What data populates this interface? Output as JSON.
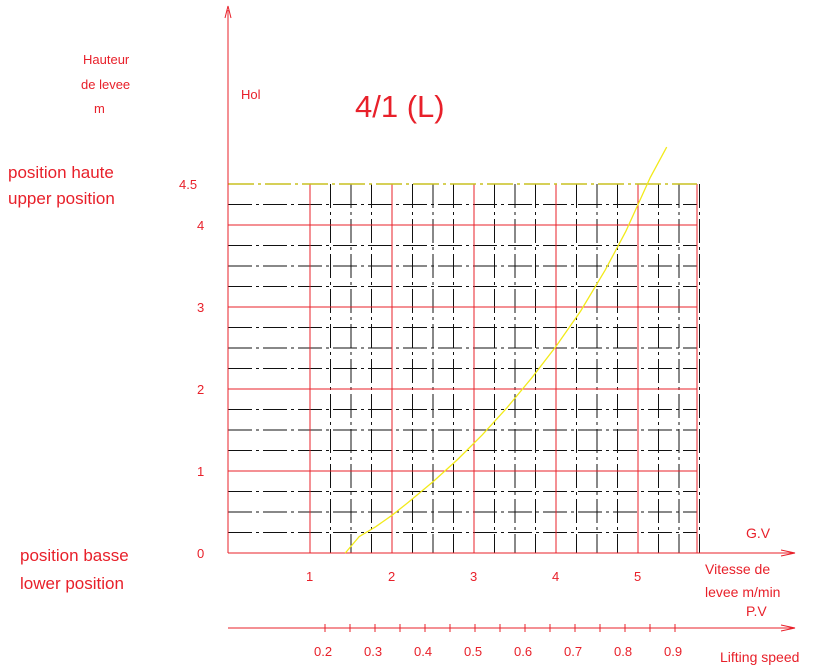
{
  "chart_data": {
    "type": "line",
    "title": "4/1 (L)",
    "hoist_label": "Hol",
    "y_axis_title": [
      "Hauteur",
      "de levee",
      "m"
    ],
    "y_ticks": [
      "0",
      "1",
      "2",
      "3",
      "4",
      "4.5"
    ],
    "ylim": [
      0,
      4.5
    ],
    "x_gv_label": "G.V",
    "x_gv_title": [
      "Vitesse de",
      "levee m/min"
    ],
    "x_gv_ticks": [
      "1",
      "2",
      "3",
      "4",
      "5"
    ],
    "xlim_gv": [
      0,
      5.8
    ],
    "x_pv_label": "P.V",
    "x_pv_title": "Lifting speed",
    "x_pv_ticks": [
      "0.2",
      "0.3",
      "0.4",
      "0.5",
      "0.6",
      "0.7",
      "0.8",
      "0.9"
    ],
    "upper_position": [
      "position haute",
      "upper position"
    ],
    "lower_position": [
      "position basse",
      "lower position"
    ],
    "grid": true,
    "series": [
      {
        "x": [
          1.43,
          1.6,
          1.8,
          2.0,
          2.2,
          2.5,
          2.8,
          3.1,
          3.4,
          3.7,
          4.0,
          4.3,
          4.6,
          4.85,
          5.0,
          5.15,
          5.35
        ],
        "y": [
          0,
          0.2,
          0.32,
          0.46,
          0.62,
          0.87,
          1.14,
          1.44,
          1.77,
          2.13,
          2.52,
          2.95,
          3.45,
          3.92,
          4.25,
          4.58,
          4.95
        ]
      }
    ],
    "colors": {
      "axis": "#e8202a",
      "major_grid": "#e8202a",
      "minor_grid": "#111111",
      "curve": "#f2ea1a",
      "top_line": "#c8c020",
      "text": "#e8202a"
    }
  }
}
